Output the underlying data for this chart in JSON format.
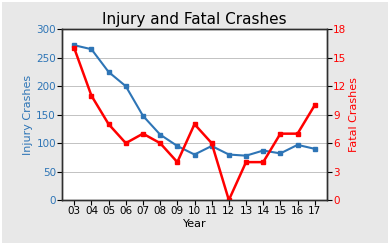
{
  "title": "Injury and Fatal Crashes",
  "xlabel": "Year",
  "ylabel_left": "Injury Crashes",
  "ylabel_right": "Fatal Crashes",
  "years": [
    "03",
    "04",
    "05",
    "06",
    "07",
    "08",
    "09",
    "10",
    "11",
    "12",
    "13",
    "14",
    "15",
    "16",
    "17"
  ],
  "injury": [
    272,
    265,
    225,
    200,
    148,
    115,
    95,
    80,
    95,
    80,
    78,
    87,
    82,
    97,
    90
  ],
  "fatal": [
    16,
    11,
    8,
    6,
    7,
    6,
    4,
    8,
    6,
    0,
    4,
    4,
    7,
    7,
    10
  ],
  "injury_color": "#2E75B6",
  "fatal_color": "#FF0000",
  "bg_color": "#E8E8E8",
  "plot_bg": "#FFFFFF",
  "border_color": "#2F2F2F",
  "ylim_left": [
    0,
    300
  ],
  "ylim_right": [
    0,
    18
  ],
  "yticks_left": [
    0,
    50,
    100,
    150,
    200,
    250,
    300
  ],
  "yticks_right": [
    0,
    3,
    6,
    9,
    12,
    15,
    18
  ],
  "grid_color": "#AAAAAA",
  "title_fontsize": 11,
  "axis_label_fontsize": 8,
  "tick_fontsize": 7.5
}
